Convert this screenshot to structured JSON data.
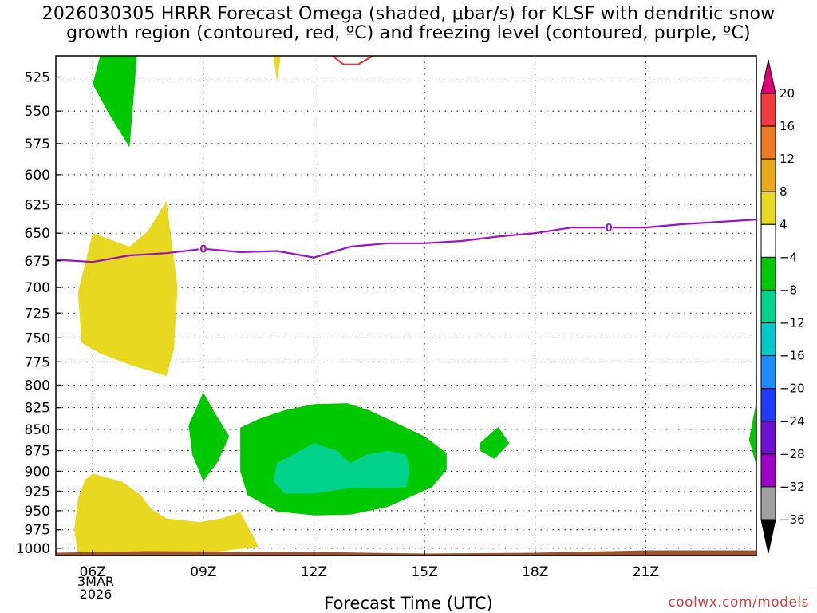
{
  "title": {
    "line1": "2026030305 HRRR Forecast Omega (shaded, μbar/s) for KLSF with dendritic snow",
    "line2": "growth region (contoured, red, ºC) and freezing level (contoured, purple, ºC)"
  },
  "x_axis": {
    "title": "Forecast Time (UTC)",
    "date_lines": [
      "3MAR",
      "2026"
    ]
  },
  "credit": "coolwx.com/models",
  "chart_data": {
    "type": "heatmap",
    "title": "2026030305 HRRR Forecast Omega (shaded, μbar/s) for KLSF with dendritic snow growth region (contoured, red, ºC) and freezing level (contoured, purple, ºC)",
    "xlabel": "Forecast Time (UTC)",
    "ylabel": "",
    "x_unit": "hours since 2026-03-03 05Z",
    "xlim": [
      5,
      24
    ],
    "ylim": [
      1010,
      510
    ],
    "y_scale": "log-pressure",
    "grid": true,
    "x_ticks": [
      {
        "value": 6,
        "label": "06Z"
      },
      {
        "value": 9,
        "label": "09Z"
      },
      {
        "value": 12,
        "label": "12Z"
      },
      {
        "value": 15,
        "label": "15Z"
      },
      {
        "value": 18,
        "label": "18Z"
      },
      {
        "value": 21,
        "label": "21Z"
      }
    ],
    "y_ticks": [
      525,
      550,
      575,
      600,
      625,
      650,
      675,
      700,
      725,
      750,
      775,
      800,
      825,
      850,
      875,
      900,
      925,
      950,
      975,
      1000
    ],
    "colorbar": {
      "unit": "μbar/s",
      "labels": [
        "20",
        "16",
        "12",
        "8",
        "4",
        "−4",
        "−8",
        "−12",
        "−16",
        "−20",
        "−24",
        "−28",
        "−32",
        "−36"
      ],
      "bins": [
        {
          "lo": 20,
          "hi": null,
          "color": "#e0007a"
        },
        {
          "lo": 16,
          "hi": 20,
          "color": "#f03c3c"
        },
        {
          "lo": 12,
          "hi": 16,
          "color": "#f07a24"
        },
        {
          "lo": 8,
          "hi": 12,
          "color": "#e8a81c"
        },
        {
          "lo": 4,
          "hi": 8,
          "color": "#e8d820"
        },
        {
          "lo": -4,
          "hi": 4,
          "color": "#ffffff"
        },
        {
          "lo": -8,
          "hi": -4,
          "color": "#00c800"
        },
        {
          "lo": -12,
          "hi": -8,
          "color": "#00d28c"
        },
        {
          "lo": -16,
          "hi": -12,
          "color": "#00c8c8"
        },
        {
          "lo": -20,
          "hi": -16,
          "color": "#1e8cff"
        },
        {
          "lo": -24,
          "hi": -20,
          "color": "#1e3cff"
        },
        {
          "lo": -28,
          "hi": -24,
          "color": "#6e10d2"
        },
        {
          "lo": -32,
          "hi": -28,
          "color": "#a000c8"
        },
        {
          "lo": -36,
          "hi": -32,
          "color": "#a0a0a0"
        },
        {
          "lo": null,
          "hi": -36,
          "color": "#000000"
        }
      ]
    },
    "regions": [
      {
        "bin": "-8 to -4",
        "color": "#00c800",
        "points": [
          [
            6.0,
            530
          ],
          [
            6.2,
            510
          ],
          [
            7.2,
            510
          ],
          [
            7.0,
            578
          ],
          [
            6.4,
            550
          ]
        ]
      },
      {
        "bin": "4 to 8",
        "color": "#e8d820",
        "points": [
          [
            10.9,
            510
          ],
          [
            11.1,
            510
          ],
          [
            11.0,
            528
          ]
        ]
      },
      {
        "bin": "4 to 8",
        "color": "#e8d820",
        "points": [
          [
            5.6,
            705
          ],
          [
            6.0,
            650
          ],
          [
            7.0,
            662
          ],
          [
            7.5,
            648
          ],
          [
            8.0,
            622
          ],
          [
            8.3,
            700
          ],
          [
            8.2,
            762
          ],
          [
            8.0,
            790
          ],
          [
            7.0,
            778
          ],
          [
            6.2,
            766
          ],
          [
            5.7,
            755
          ]
        ]
      },
      {
        "bin": "-8 to -4",
        "color": "#00c800",
        "points": [
          [
            9.0,
            808
          ],
          [
            9.3,
            830
          ],
          [
            9.7,
            858
          ],
          [
            9.4,
            888
          ],
          [
            9.0,
            912
          ],
          [
            8.7,
            880
          ],
          [
            8.6,
            845
          ]
        ]
      },
      {
        "bin": "-8 to -4",
        "color": "#00c800",
        "points": [
          [
            10.0,
            848
          ],
          [
            10.5,
            838
          ],
          [
            11.2,
            828
          ],
          [
            12.0,
            821
          ],
          [
            12.9,
            820
          ],
          [
            13.5,
            828
          ],
          [
            14.2,
            842
          ],
          [
            15.0,
            858
          ],
          [
            15.6,
            878
          ],
          [
            15.6,
            898
          ],
          [
            15.2,
            920
          ],
          [
            14.0,
            945
          ],
          [
            13.0,
            955
          ],
          [
            12.0,
            956
          ],
          [
            11.0,
            951
          ],
          [
            10.2,
            930
          ],
          [
            10.0,
            900
          ],
          [
            10.0,
            868
          ]
        ]
      },
      {
        "bin": "-12 to -8",
        "color": "#00d28c",
        "points": [
          [
            11.0,
            890
          ],
          [
            11.5,
            878
          ],
          [
            12.0,
            866
          ],
          [
            12.6,
            875
          ],
          [
            13.0,
            890
          ],
          [
            13.4,
            880
          ],
          [
            14.0,
            875
          ],
          [
            14.5,
            880
          ],
          [
            14.6,
            898
          ],
          [
            14.5,
            920
          ],
          [
            13.9,
            921
          ],
          [
            13.0,
            921
          ],
          [
            12.0,
            928
          ],
          [
            11.2,
            928
          ],
          [
            10.9,
            912
          ]
        ]
      },
      {
        "bin": "-8 to -4",
        "color": "#00c800",
        "points": [
          [
            16.5,
            866
          ],
          [
            17.0,
            847
          ],
          [
            17.3,
            866
          ],
          [
            16.9,
            885
          ],
          [
            16.5,
            875
          ]
        ]
      },
      {
        "bin": "-8 to -4",
        "color": "#00c800",
        "points": [
          [
            23.8,
            862
          ],
          [
            24,
            818
          ],
          [
            24,
            893
          ]
        ]
      },
      {
        "bin": "4 to 8",
        "color": "#e8d820",
        "points": [
          [
            5.5,
            975
          ],
          [
            5.6,
            935
          ],
          [
            5.8,
            910
          ],
          [
            6.0,
            903
          ],
          [
            6.8,
            913
          ],
          [
            7.3,
            930
          ],
          [
            7.6,
            948
          ],
          [
            8.0,
            960
          ],
          [
            8.9,
            965
          ],
          [
            9.5,
            960
          ],
          [
            10.0,
            952
          ],
          [
            10.4,
            988
          ],
          [
            10.5,
            998
          ],
          [
            9.8,
            1002
          ],
          [
            9.0,
            1007
          ],
          [
            8.0,
            1010
          ],
          [
            6.5,
            1010
          ],
          [
            5.6,
            1008
          ]
        ]
      }
    ],
    "series": [
      {
        "name": "freezing level",
        "color": "#9b10c8",
        "contour_label": "0",
        "label_x": [
          9.0,
          20.0
        ],
        "x": [
          5.0,
          6.0,
          7.0,
          8.0,
          9.0,
          10.0,
          11.0,
          12.0,
          13.0,
          14.0,
          15.0,
          16.0,
          17.0,
          18.0,
          19.0,
          20.0,
          21.0,
          22.0,
          23.0,
          24.0
        ],
        "y": [
          674,
          676,
          670,
          668,
          664,
          667,
          666,
          672,
          662,
          659,
          659,
          657,
          653,
          650,
          645,
          645,
          645,
          642,
          640,
          638
        ]
      },
      {
        "name": "dendritic snow growth region",
        "color": "#e03c3c",
        "x": [
          12.4,
          12.8,
          13.2,
          13.6
        ],
        "y": [
          508,
          516,
          516,
          510
        ]
      }
    ],
    "ground": {
      "color": "#a0522d"
    }
  }
}
